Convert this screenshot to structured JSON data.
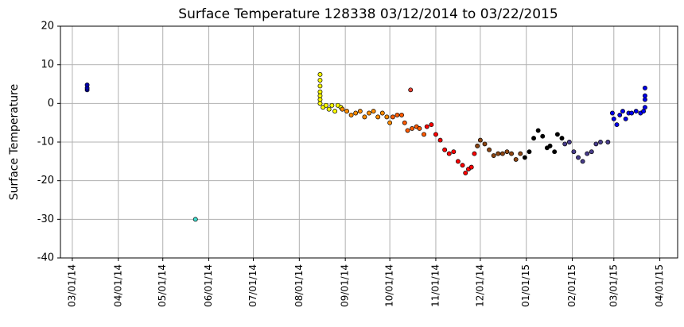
{
  "chart_data": {
    "type": "scatter",
    "title": "Surface Temperature 128338  03/12/2014 to 03/22/2015",
    "y_label": "Surface Temperature",
    "grid": true,
    "xlim": [
      "2014-02-21",
      "2015-04-13"
    ],
    "ylim": [
      -40,
      20
    ],
    "yticks": [
      -40,
      -30,
      -20,
      -10,
      0,
      10,
      20
    ],
    "xticks": [
      {
        "value": "2014-03-01",
        "label": "03/01/14"
      },
      {
        "value": "2014-04-01",
        "label": "04/01/14"
      },
      {
        "value": "2014-05-01",
        "label": "05/01/14"
      },
      {
        "value": "2014-06-01",
        "label": "06/01/14"
      },
      {
        "value": "2014-07-01",
        "label": "07/01/14"
      },
      {
        "value": "2014-08-01",
        "label": "08/01/14"
      },
      {
        "value": "2014-09-01",
        "label": "09/01/14"
      },
      {
        "value": "2014-10-01",
        "label": "10/01/14"
      },
      {
        "value": "2014-11-01",
        "label": "11/01/14"
      },
      {
        "value": "2014-12-01",
        "label": "12/01/14"
      },
      {
        "value": "2015-01-01",
        "label": "01/01/15"
      },
      {
        "value": "2015-02-01",
        "label": "02/01/15"
      },
      {
        "value": "2015-03-01",
        "label": "03/01/15"
      },
      {
        "value": "2015-04-01",
        "label": "04/01/15"
      }
    ],
    "series": [
      {
        "color": "#0000b0",
        "x": [
          "2014-03-11",
          "2014-03-11",
          "2014-03-11"
        ],
        "values": [
          3.5,
          4,
          4.8
        ]
      },
      {
        "color": "#40e0d0",
        "x": [
          "2014-05-23"
        ],
        "values": [
          -30
        ]
      },
      {
        "color": "#ffff00",
        "x": [
          "2014-08-15",
          "2014-08-15",
          "2014-08-15",
          "2014-08-15",
          "2014-08-15",
          "2014-08-15",
          "2014-08-15",
          "2014-08-17",
          "2014-08-19",
          "2014-08-21",
          "2014-08-23",
          "2014-08-25",
          "2014-08-27",
          "2014-08-29"
        ],
        "values": [
          7.5,
          6,
          4.5,
          3,
          2,
          1,
          0,
          -1,
          -0.5,
          -1.5,
          -0.5,
          -2,
          -0.5,
          -1
        ]
      },
      {
        "color": "#ff8c00",
        "x": [
          "2014-08-30",
          "2014-09-02",
          "2014-09-05",
          "2014-09-08",
          "2014-09-11",
          "2014-09-14",
          "2014-09-17",
          "2014-09-20",
          "2014-09-23",
          "2014-09-26",
          "2014-09-29",
          "2014-10-01"
        ],
        "values": [
          -1.5,
          -2,
          -3,
          -2.5,
          -2,
          -3.5,
          -2.5,
          -2,
          -3.5,
          -2.5,
          -3.5,
          -5
        ]
      },
      {
        "color": "#ff5a00",
        "x": [
          "2014-10-03",
          "2014-10-06",
          "2014-10-09",
          "2014-10-11",
          "2014-10-13",
          "2014-10-16",
          "2014-10-19",
          "2014-10-21",
          "2014-10-24"
        ],
        "values": [
          -3.5,
          -3,
          -3,
          -5,
          -7,
          -6.5,
          -6,
          -6.5,
          -8
        ]
      },
      {
        "color": "#e34234",
        "x": [
          "2014-10-15"
        ],
        "values": [
          3.5
        ]
      },
      {
        "color": "#ff0000",
        "x": [
          "2014-10-26",
          "2014-10-29",
          "2014-11-01",
          "2014-11-04",
          "2014-11-07",
          "2014-11-10",
          "2014-11-13",
          "2014-11-16",
          "2014-11-19",
          "2014-11-21",
          "2014-11-23",
          "2014-11-25",
          "2014-11-27"
        ],
        "values": [
          -6,
          -5.5,
          -8,
          -9.5,
          -12,
          -13,
          -12.5,
          -15,
          -16,
          -18,
          -17,
          -16.5,
          -13
        ]
      },
      {
        "color": "#8b4513",
        "x": [
          "2014-11-29",
          "2014-12-01",
          "2014-12-04",
          "2014-12-07",
          "2014-12-10",
          "2014-12-13",
          "2014-12-16",
          "2014-12-19",
          "2014-12-22",
          "2014-12-25",
          "2014-12-28"
        ],
        "values": [
          -11,
          -9.5,
          -10.5,
          -12,
          -13.5,
          -13,
          -13,
          -12.5,
          -13,
          -14.5,
          -13
        ]
      },
      {
        "color": "#000000",
        "x": [
          "2014-12-31",
          "2015-01-03",
          "2015-01-06",
          "2015-01-09",
          "2015-01-12",
          "2015-01-15",
          "2015-01-17",
          "2015-01-20",
          "2015-01-22",
          "2015-01-25"
        ],
        "values": [
          -14,
          -12.5,
          -9,
          -7,
          -8.5,
          -11.5,
          -11,
          -12.5,
          -8,
          -9
        ]
      },
      {
        "color": "#483d8b",
        "x": [
          "2015-01-27",
          "2015-01-30",
          "2015-02-02",
          "2015-02-05",
          "2015-02-08",
          "2015-02-11",
          "2015-02-14",
          "2015-02-17",
          "2015-02-20",
          "2015-02-25"
        ],
        "values": [
          -10.5,
          -10,
          -12.5,
          -14,
          -15,
          -13,
          -12.5,
          -10.5,
          -10,
          -10
        ]
      },
      {
        "color": "#0000ee",
        "x": [
          "2015-02-28",
          "2015-03-01",
          "2015-03-03",
          "2015-03-05",
          "2015-03-07",
          "2015-03-09",
          "2015-03-11",
          "2015-03-13",
          "2015-03-16",
          "2015-03-19",
          "2015-03-21",
          "2015-03-22",
          "2015-03-22",
          "2015-03-22",
          "2015-03-22"
        ],
        "values": [
          -2.5,
          -4,
          -5.5,
          -3,
          -2,
          -4,
          -2.5,
          -2.5,
          -2,
          -2.5,
          -2,
          -1,
          1,
          2,
          4
        ]
      }
    ]
  }
}
